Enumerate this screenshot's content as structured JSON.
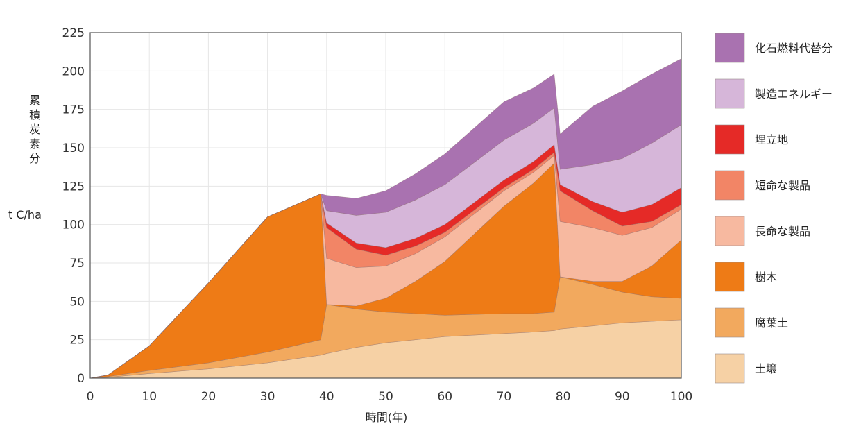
{
  "chart_data": {
    "type": "area",
    "title": "",
    "xlabel": "時間(年)",
    "ylabel": "累積炭素分",
    "yunit": "t C/ha",
    "xlim": [
      0,
      100
    ],
    "ylim": [
      0,
      225
    ],
    "xticks": [
      0,
      10,
      20,
      30,
      40,
      50,
      60,
      70,
      80,
      90,
      100
    ],
    "yticks": [
      0,
      25,
      50,
      75,
      100,
      125,
      150,
      175,
      200,
      225
    ],
    "grid": true,
    "legend_position": "right",
    "stacking": "stacked",
    "x": [
      0,
      3,
      10,
      20,
      30,
      39,
      40,
      45,
      50,
      55,
      60,
      70,
      75,
      78.5,
      79.5,
      85,
      90,
      95,
      100
    ],
    "series": [
      {
        "name": "土壌",
        "color": "#f6d1a5",
        "values": [
          0,
          0.5,
          3,
          6,
          10,
          15,
          16,
          20,
          23,
          25,
          27,
          29,
          30,
          31,
          32,
          34,
          36,
          37,
          38
        ]
      },
      {
        "name": "腐葉土",
        "color": "#f2a95e",
        "values": [
          0,
          0.5,
          2,
          4,
          7,
          10,
          32,
          25,
          20,
          17,
          14,
          13,
          12,
          12,
          34,
          27,
          20,
          16,
          14
        ]
      },
      {
        "name": "樹木",
        "color": "#ee7b16",
        "values": [
          0,
          1,
          16,
          52,
          88,
          95,
          0,
          2,
          9,
          21,
          35,
          70,
          85,
          97,
          0,
          2,
          7,
          20,
          38
        ]
      },
      {
        "name": "長命な製品",
        "color": "#f7b9a0",
        "values": [
          0,
          0,
          0,
          0,
          0,
          0,
          30,
          25,
          21,
          18,
          16,
          10,
          7,
          5,
          36,
          35,
          30,
          25,
          20
        ]
      },
      {
        "name": "短命な製品",
        "color": "#f28566",
        "values": [
          0,
          0,
          0,
          0,
          0,
          0,
          20,
          12,
          7,
          5,
          3,
          2,
          2,
          2,
          20,
          11,
          6,
          4,
          3
        ]
      },
      {
        "name": "埋立地",
        "color": "#e52a27",
        "values": [
          0,
          0,
          0,
          0,
          0,
          0,
          3,
          4,
          5,
          5,
          5,
          5,
          5,
          5,
          4,
          6,
          9,
          11,
          11
        ]
      },
      {
        "name": "製造エネルギー",
        "color": "#d6b6d9",
        "values": [
          0,
          0,
          0,
          0,
          0,
          0,
          8,
          18,
          23,
          25,
          26,
          26,
          25,
          24,
          10,
          24,
          35,
          40,
          41
        ]
      },
      {
        "name": "化石燃料代替分",
        "color": "#a972b0",
        "values": [
          0,
          0,
          0,
          0,
          0,
          0,
          10,
          11,
          14,
          17,
          20,
          25,
          23,
          22,
          23,
          38,
          44,
          45,
          43
        ]
      }
    ]
  }
}
